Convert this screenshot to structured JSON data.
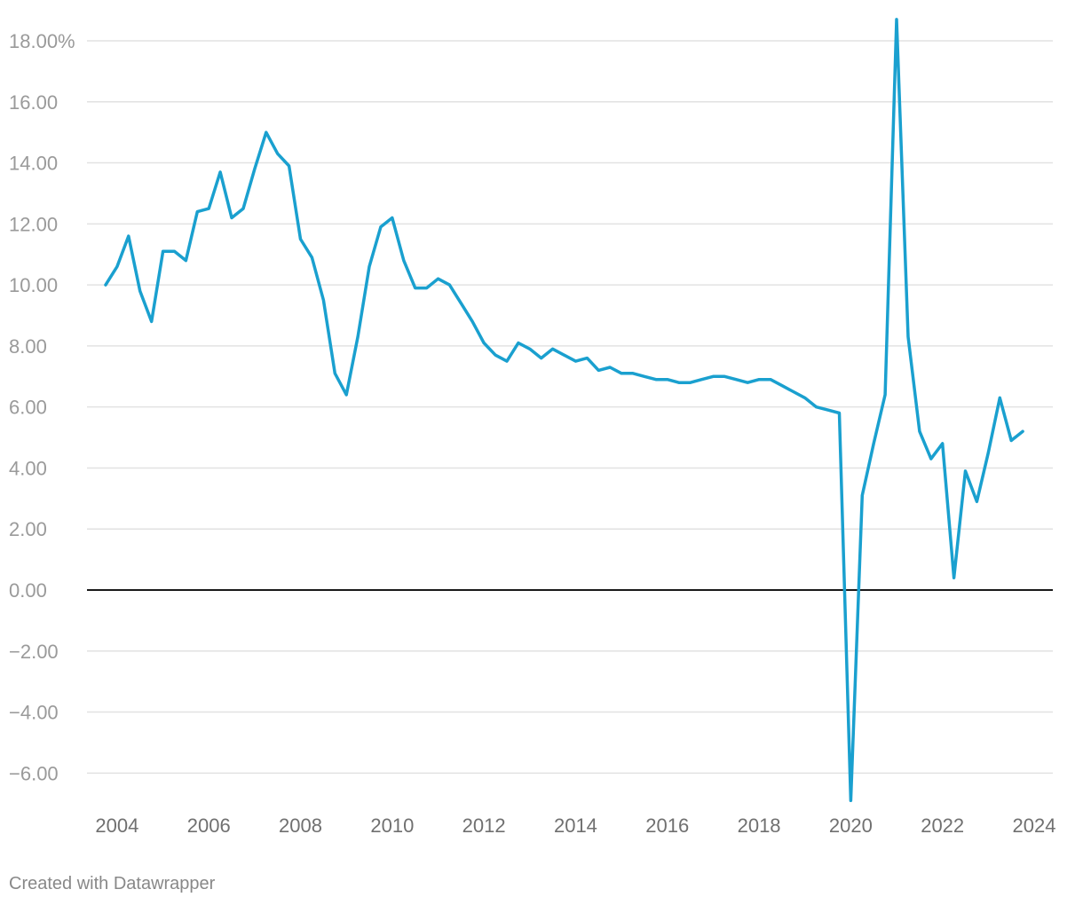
{
  "chart_data": {
    "type": "line",
    "title": "",
    "xlabel": "",
    "ylabel": "",
    "x_range": [
      2003.75,
      2024
    ],
    "ylim": [
      -7,
      19
    ],
    "grid": true,
    "x_tick_labels": [
      "2004",
      "2006",
      "2008",
      "2010",
      "2012",
      "2014",
      "2016",
      "2018",
      "2020",
      "2022",
      "2024"
    ],
    "x_tick_values": [
      2004,
      2006,
      2008,
      2010,
      2012,
      2014,
      2016,
      2018,
      2020,
      2022,
      2024
    ],
    "y_tick_labels": [
      "18.00%",
      "16.00",
      "14.00",
      "12.00",
      "10.00",
      "8.00",
      "6.00",
      "4.00",
      "2.00",
      "0.00",
      "−2.00",
      "−4.00",
      "−6.00"
    ],
    "y_tick_values": [
      18,
      16,
      14,
      12,
      10,
      8,
      6,
      4,
      2,
      0,
      -2,
      -4,
      -6
    ],
    "series": [
      {
        "color": "#1aa0cf",
        "x": [
          2003.75,
          2004.0,
          2004.25,
          2004.5,
          2004.75,
          2005.0,
          2005.25,
          2005.5,
          2005.75,
          2006.0,
          2006.25,
          2006.5,
          2006.75,
          2007.0,
          2007.25,
          2007.5,
          2007.75,
          2008.0,
          2008.25,
          2008.5,
          2008.75,
          2009.0,
          2009.25,
          2009.5,
          2009.75,
          2010.0,
          2010.25,
          2010.5,
          2010.75,
          2011.0,
          2011.25,
          2011.5,
          2011.75,
          2012.0,
          2012.25,
          2012.5,
          2012.75,
          2013.0,
          2013.25,
          2013.5,
          2013.75,
          2014.0,
          2014.25,
          2014.5,
          2014.75,
          2015.0,
          2015.25,
          2015.5,
          2015.75,
          2016.0,
          2016.25,
          2016.5,
          2016.75,
          2017.0,
          2017.25,
          2017.5,
          2017.75,
          2018.0,
          2018.25,
          2018.5,
          2018.75,
          2019.0,
          2019.25,
          2019.5,
          2019.75,
          2020.0,
          2020.25,
          2020.5,
          2020.75,
          2021.0,
          2021.25,
          2021.5,
          2021.75,
          2022.0,
          2022.25,
          2022.5,
          2022.75,
          2023.0,
          2023.25,
          2023.5,
          2023.75
        ],
        "values": [
          10.0,
          10.6,
          11.6,
          9.8,
          8.8,
          11.1,
          11.1,
          10.8,
          12.4,
          12.5,
          13.7,
          12.2,
          12.5,
          13.8,
          15.0,
          14.3,
          13.9,
          11.5,
          10.9,
          9.5,
          7.1,
          6.4,
          8.3,
          10.6,
          11.9,
          12.2,
          10.8,
          9.9,
          9.9,
          10.2,
          10.0,
          9.4,
          8.8,
          8.1,
          7.7,
          7.5,
          8.1,
          7.9,
          7.6,
          7.9,
          7.7,
          7.5,
          7.6,
          7.2,
          7.3,
          7.1,
          7.1,
          7.0,
          6.9,
          6.9,
          6.8,
          6.8,
          6.9,
          7.0,
          7.0,
          6.9,
          6.8,
          6.9,
          6.9,
          6.7,
          6.5,
          6.3,
          6.0,
          5.9,
          5.8,
          -6.9,
          3.1,
          4.8,
          6.4,
          18.7,
          8.3,
          5.2,
          4.3,
          4.8,
          0.4,
          3.9,
          2.9,
          4.5,
          6.3,
          4.9,
          5.2
        ]
      }
    ]
  },
  "footer": {
    "credit": "Created with Datawrapper"
  }
}
